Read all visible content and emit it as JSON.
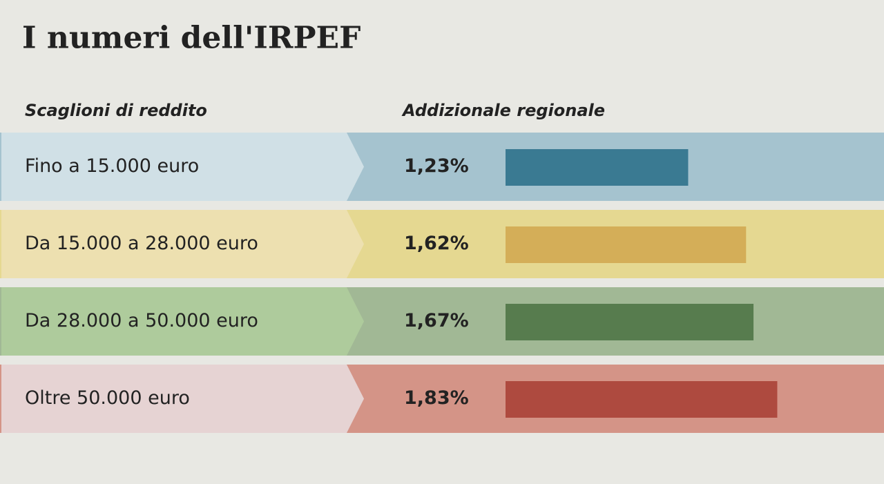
{
  "chart_data": {
    "type": "bar",
    "title": "I numeri dell'IRPEF",
    "category_header": "Scaglioni di reddito",
    "value_header": "Addizionale regionale",
    "categories": [
      "Fino a 15.000 euro",
      "Da 15.000 a 28.000 euro",
      "Da 28.000 a 50.000 euro",
      "Oltre 50.000 euro"
    ],
    "values": [
      1.23,
      1.62,
      1.67,
      1.83
    ],
    "value_labels": [
      "1,23%",
      "1,62%",
      "1,67%",
      "1,83%"
    ],
    "colors": [
      "#3a7a92",
      "#d4ae58",
      "#577c4e",
      "#ae4a3f"
    ]
  }
}
